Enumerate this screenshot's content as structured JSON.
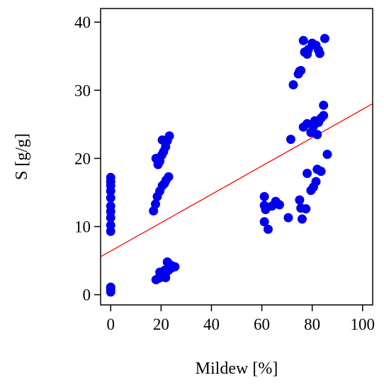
{
  "chart_data": {
    "type": "scatter",
    "xlabel": "Mildew [%]",
    "ylabel": "S [g/g]",
    "xlim": [
      -4,
      104
    ],
    "ylim": [
      -1.5,
      42
    ],
    "xticks": [
      0,
      20,
      40,
      60,
      80,
      100
    ],
    "yticks": [
      0,
      10,
      20,
      30,
      40
    ],
    "grid": false,
    "colors": {
      "points": "#0000ee",
      "fit_line": "#ff0000",
      "frame": "#000000"
    },
    "series": [
      {
        "points": [
          [
            0,
            0.4
          ],
          [
            0,
            0.8
          ],
          [
            0,
            1.1
          ],
          [
            0,
            9.3
          ],
          [
            0,
            10.2
          ],
          [
            0,
            11.3
          ],
          [
            0,
            12.2
          ],
          [
            0,
            13.0
          ],
          [
            0,
            14.2
          ],
          [
            0,
            15.2
          ],
          [
            0,
            16.0
          ],
          [
            0,
            16.6
          ],
          [
            0,
            17.2
          ],
          [
            17,
            12.3
          ],
          [
            17.8,
            13.3
          ],
          [
            18.5,
            14.4
          ],
          [
            19.5,
            15.2
          ],
          [
            20.5,
            16.0
          ],
          [
            21.3,
            16.3
          ],
          [
            22,
            16.8
          ],
          [
            23,
            17.3
          ],
          [
            18,
            20.0
          ],
          [
            18.8,
            19.1
          ],
          [
            19.5,
            19.6
          ],
          [
            20.3,
            20.5
          ],
          [
            21,
            21.0
          ],
          [
            21.8,
            21.7
          ],
          [
            22.5,
            22.6
          ],
          [
            23.3,
            23.3
          ],
          [
            20.5,
            22.7
          ],
          [
            18,
            2.2
          ],
          [
            19,
            2.4
          ],
          [
            19.5,
            3.3
          ],
          [
            20.5,
            2.6
          ],
          [
            21,
            3.0
          ],
          [
            21.8,
            2.5
          ],
          [
            22.3,
            3.4
          ],
          [
            22.5,
            4.8
          ],
          [
            23,
            3.6
          ],
          [
            23.5,
            4.4
          ],
          [
            24,
            3.9
          ],
          [
            24.5,
            4.2
          ],
          [
            25.5,
            4.1
          ],
          [
            21.5,
            3.6
          ],
          [
            61,
            14.4
          ],
          [
            61,
            13.1
          ],
          [
            61.5,
            12.5
          ],
          [
            61,
            10.7
          ],
          [
            62.5,
            9.6
          ],
          [
            64,
            13.0
          ],
          [
            65.5,
            13.7
          ],
          [
            67,
            13.2
          ],
          [
            70.5,
            11.3
          ],
          [
            75,
            13.9
          ],
          [
            75.5,
            12.7
          ],
          [
            76,
            11.1
          ],
          [
            77.5,
            12.6
          ],
          [
            71.5,
            22.8
          ],
          [
            72.5,
            30.8
          ],
          [
            74.5,
            32.4
          ],
          [
            75.5,
            32.9
          ],
          [
            75,
            32.8
          ],
          [
            76.5,
            37.3
          ],
          [
            77,
            35.6
          ],
          [
            78,
            35.3
          ],
          [
            78.5,
            36.0
          ],
          [
            80,
            36.9
          ],
          [
            81.5,
            36.6
          ],
          [
            82.5,
            35.9
          ],
          [
            83,
            35.4
          ],
          [
            85,
            37.6
          ],
          [
            76.5,
            24.6
          ],
          [
            78,
            25.1
          ],
          [
            79.5,
            23.8
          ],
          [
            80.5,
            24.7
          ],
          [
            81,
            25.5
          ],
          [
            82,
            23.5
          ],
          [
            82.5,
            25.3
          ],
          [
            83.5,
            25.9
          ],
          [
            84.5,
            26.3
          ],
          [
            84.5,
            27.8
          ],
          [
            78,
            17.8
          ],
          [
            79.5,
            15.3
          ],
          [
            80.5,
            15.8
          ],
          [
            81.5,
            16.6
          ],
          [
            82,
            18.4
          ],
          [
            83.5,
            18.1
          ],
          [
            86,
            20.6
          ]
        ]
      }
    ],
    "fit_line": {
      "intercept": 6.4,
      "slope": 0.208
    }
  }
}
